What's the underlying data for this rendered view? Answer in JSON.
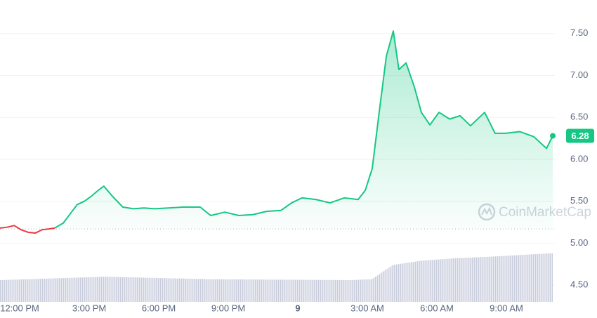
{
  "chart_data": {
    "type": "area-line",
    "xlim": [
      11.15,
      35.09
    ],
    "ylim": [
      4.3,
      7.9
    ],
    "yticks": [
      {
        "value": 4.5,
        "label": "4.50"
      },
      {
        "value": 5,
        "label": "5.00"
      },
      {
        "value": 5.5,
        "label": "5.50"
      },
      {
        "value": 6,
        "label": "6.00"
      },
      {
        "value": 6.5,
        "label": "6.50"
      },
      {
        "value": 7,
        "label": "7.00"
      },
      {
        "value": 7.5,
        "label": "7.50"
      }
    ],
    "xticks": [
      {
        "value": 12,
        "label": "12:00 PM"
      },
      {
        "value": 15,
        "label": "3:00 PM"
      },
      {
        "value": 18,
        "label": "6:00 PM"
      },
      {
        "value": 21,
        "label": "9:00 PM"
      },
      {
        "value": 24,
        "label": "9"
      },
      {
        "value": 27,
        "label": "3:00 AM"
      },
      {
        "value": 30,
        "label": "6:00 AM"
      },
      {
        "value": 33,
        "label": "9:00 AM"
      }
    ],
    "grid": true,
    "reference_line": 5.17,
    "series": [
      {
        "color": "#ea3943",
        "x": [
          11.15,
          11.45,
          11.76,
          12.06,
          12.36,
          12.67,
          12.97,
          13.27,
          13.51
        ],
        "values": [
          5.18,
          5.19,
          5.21,
          5.16,
          5.13,
          5.12,
          5.16,
          5.17,
          5.18
        ]
      },
      {
        "color": "#16c784",
        "x": [
          13.51,
          13.88,
          14.18,
          14.48,
          14.79,
          15.09,
          15.39,
          15.63,
          16.0,
          16.45,
          16.91,
          17.36,
          17.82,
          18.42,
          19.03,
          19.79,
          20.24,
          20.85,
          21.45,
          22.06,
          22.67,
          23.27,
          23.73,
          24.18,
          24.79,
          25.39,
          26.0,
          26.6,
          26.91,
          27.21,
          27.51,
          27.82,
          28.12,
          28.36,
          28.67,
          29.03,
          29.33,
          29.7,
          30.09,
          30.55,
          31.0,
          31.45,
          32.06,
          32.51,
          32.97,
          33.58,
          34.18,
          34.73,
          35.0
        ],
        "values": [
          5.18,
          5.24,
          5.35,
          5.46,
          5.5,
          5.56,
          5.63,
          5.68,
          5.56,
          5.43,
          5.41,
          5.42,
          5.41,
          5.42,
          5.43,
          5.43,
          5.33,
          5.37,
          5.33,
          5.34,
          5.38,
          5.39,
          5.48,
          5.54,
          5.52,
          5.48,
          5.54,
          5.52,
          5.63,
          5.89,
          6.56,
          7.23,
          7.53,
          7.07,
          7.15,
          6.86,
          6.56,
          6.41,
          6.56,
          6.48,
          6.52,
          6.4,
          6.56,
          6.31,
          6.31,
          6.33,
          6.27,
          6.13,
          6.28
        ]
      }
    ],
    "volume": {
      "color": "#cfd3e3",
      "x": [
        11.15,
        15.7,
        20.2,
        26.3,
        27.2,
        28.1,
        29.3,
        30.8,
        32.4,
        35.0
      ],
      "values": [
        4.56,
        4.6,
        4.57,
        4.56,
        4.57,
        4.74,
        4.79,
        4.82,
        4.84,
        4.88
      ]
    },
    "current_price": 6.28,
    "watermark": "CoinMarketCap"
  }
}
